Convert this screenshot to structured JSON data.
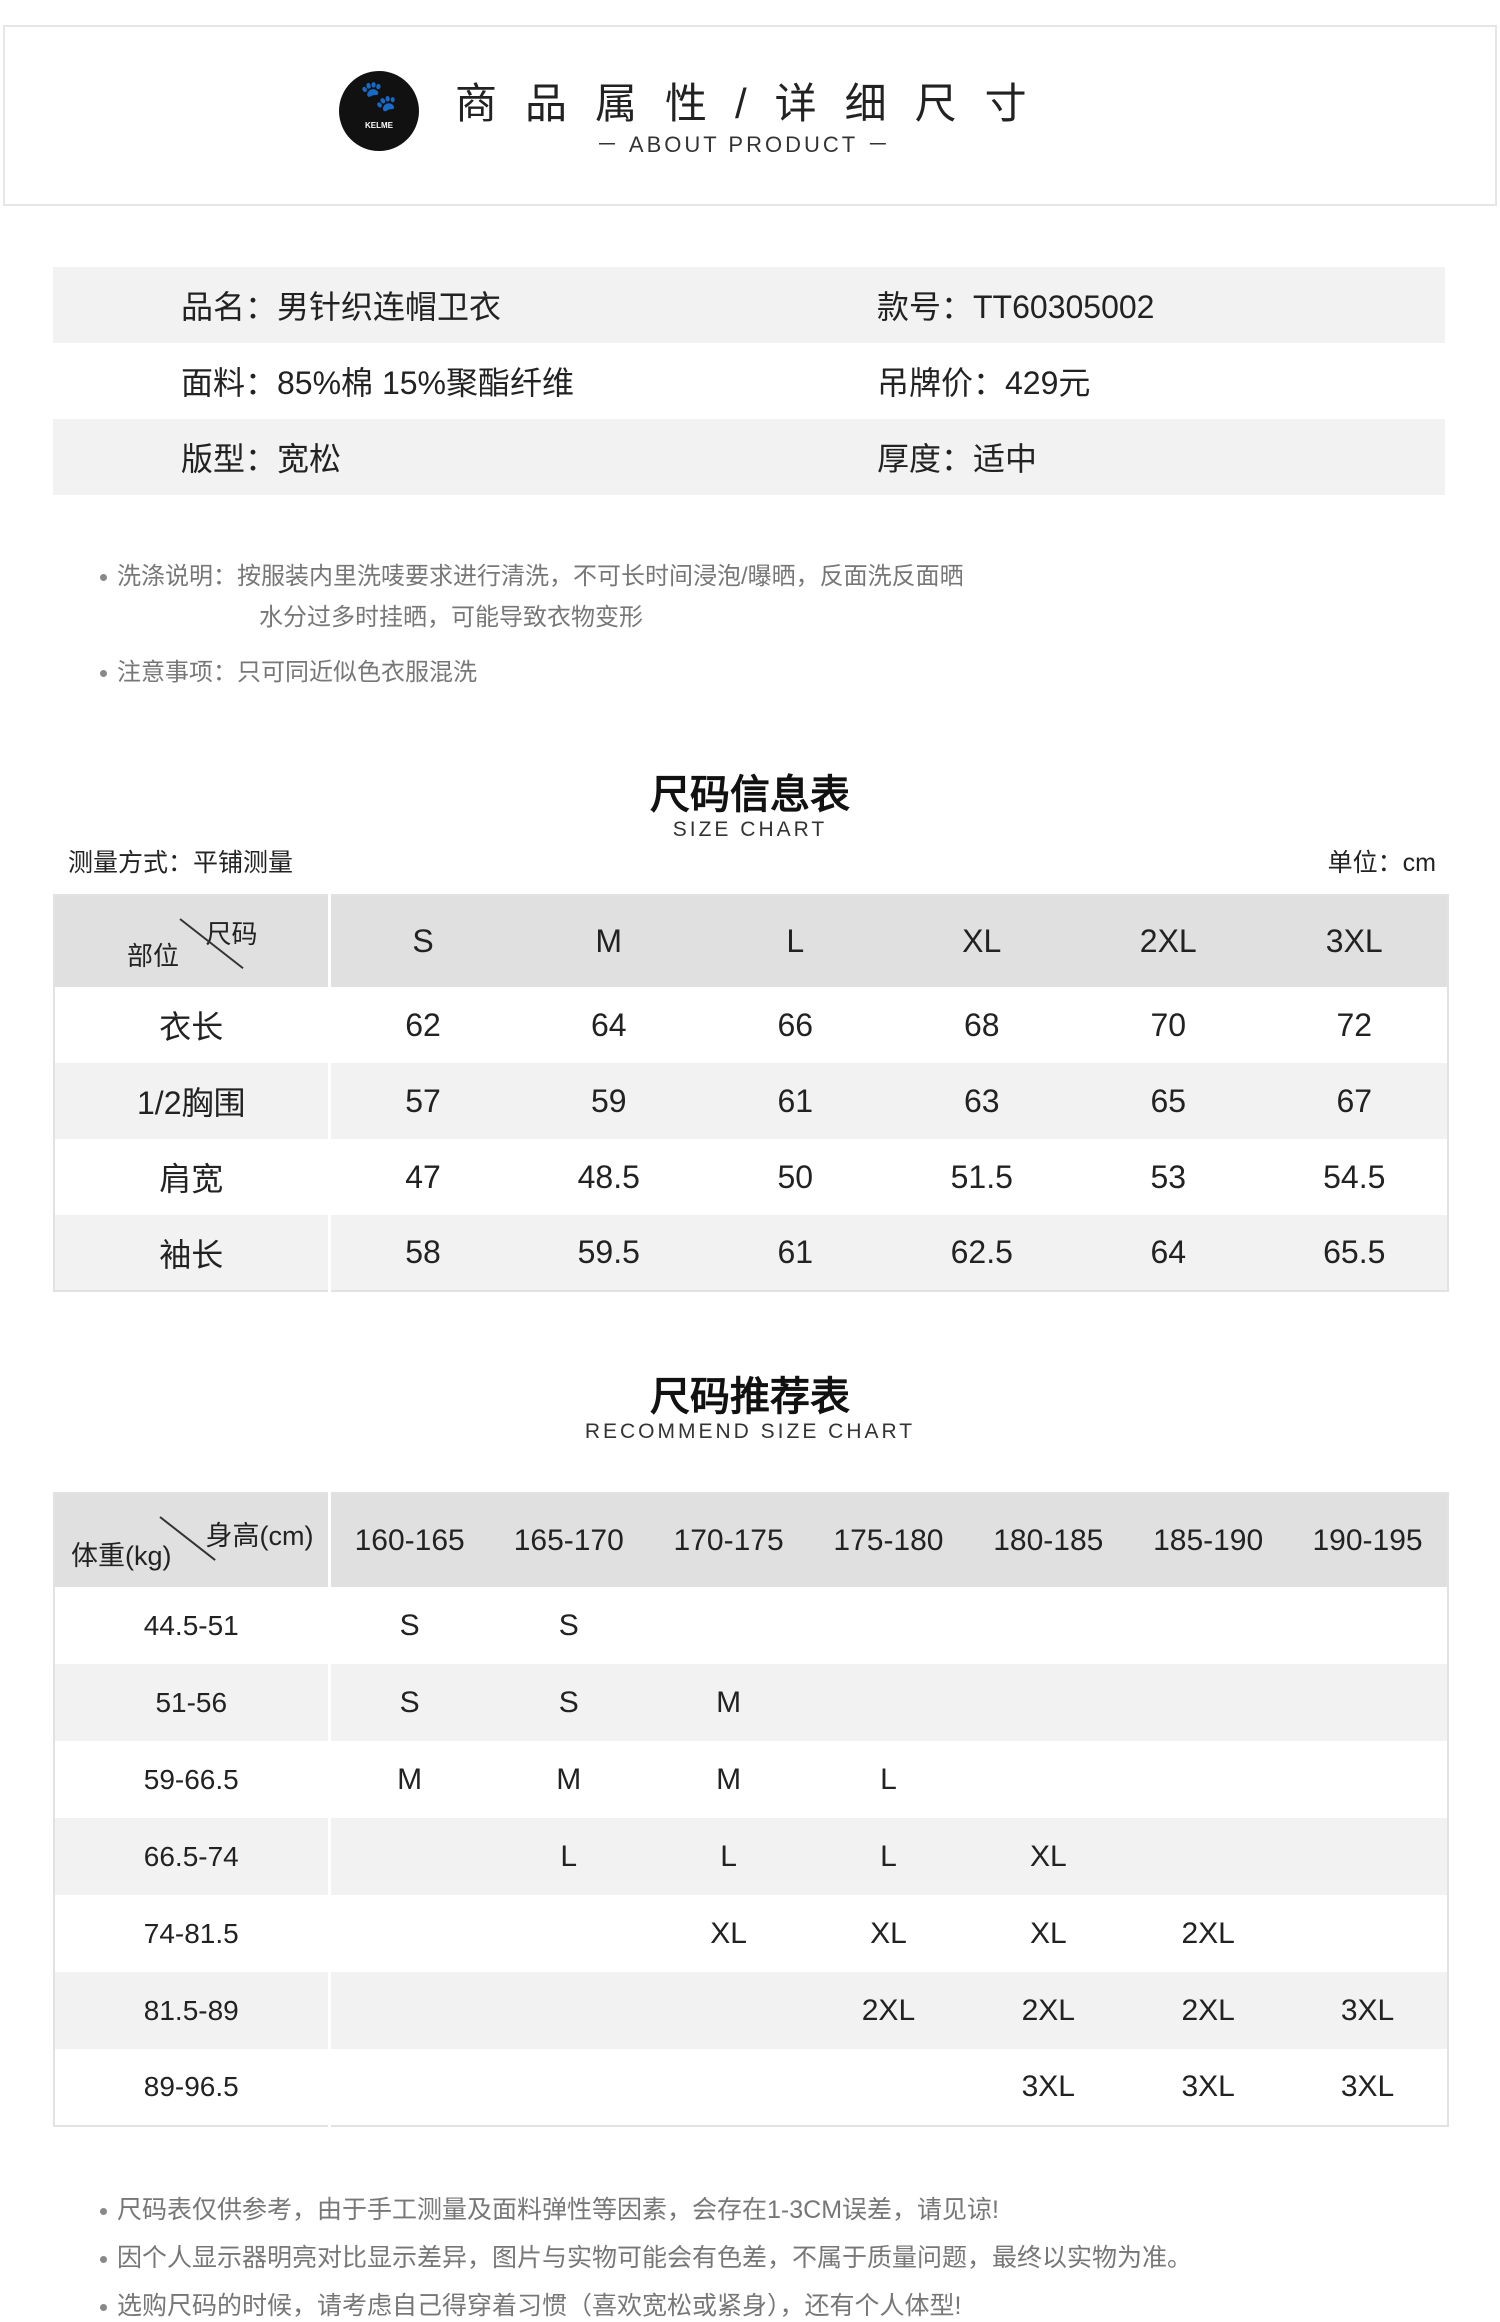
{
  "header": {
    "title": "商品属性/详细尺寸",
    "subtitle": "－ ABOUT PRODUCT －",
    "logo_text": "KELME",
    "logo_icon": "paw-icon"
  },
  "info": [
    {
      "left": "品名：男针织连帽卫衣",
      "right": "款号：TT60305002"
    },
    {
      "left": "面料：85%棉 15%聚酯纤维",
      "right": "吊牌价：429元"
    },
    {
      "left": "版型：宽松",
      "right": "厚度：适中"
    }
  ],
  "care_notes": {
    "wash_label": "洗涤说明：",
    "wash_line1": "按服装内里洗唛要求进行清洗，不可长时间浸泡/曝晒，反面洗反面晒",
    "wash_line2": "水分过多时挂晒，可能导致衣物变形",
    "caution_label": "注意事项：",
    "caution_text": "只可同近似色衣服混洗"
  },
  "size_chart": {
    "title": "尺码信息表",
    "subtitle": "SIZE CHART",
    "method": "测量方式：平铺测量",
    "unit": "单位：cm",
    "corner_top": "尺码",
    "corner_bottom": "部位",
    "columns": [
      "S",
      "M",
      "L",
      "XL",
      "2XL",
      "3XL"
    ],
    "rows": [
      {
        "label": "衣长",
        "values": [
          "62",
          "64",
          "66",
          "68",
          "70",
          "72"
        ]
      },
      {
        "label": "1/2胸围",
        "values": [
          "57",
          "59",
          "61",
          "63",
          "65",
          "67"
        ]
      },
      {
        "label": "肩宽",
        "values": [
          "47",
          "48.5",
          "50",
          "51.5",
          "53",
          "54.5"
        ]
      },
      {
        "label": "袖长",
        "values": [
          "58",
          "59.5",
          "61",
          "62.5",
          "64",
          "65.5"
        ]
      }
    ]
  },
  "recommend": {
    "title": "尺码推荐表",
    "subtitle": "RECOMMEND SIZE  CHART",
    "corner_top": "身高(cm)",
    "corner_bottom": "体重(kg)",
    "columns": [
      "160-165",
      "165-170",
      "170-175",
      "175-180",
      "180-185",
      "185-190",
      "190-195"
    ],
    "rows": [
      {
        "label": "44.5-51",
        "values": [
          "S",
          "S",
          "",
          "",
          "",
          "",
          ""
        ]
      },
      {
        "label": "51-56",
        "values": [
          "S",
          "S",
          "M",
          "",
          "",
          "",
          ""
        ]
      },
      {
        "label": "59-66.5",
        "values": [
          "M",
          "M",
          "M",
          "L",
          "",
          "",
          ""
        ]
      },
      {
        "label": "66.5-74",
        "values": [
          "",
          "L",
          "L",
          "L",
          "XL",
          "",
          ""
        ]
      },
      {
        "label": "74-81.5",
        "values": [
          "",
          "",
          "XL",
          "XL",
          "XL",
          "2XL",
          ""
        ]
      },
      {
        "label": "81.5-89",
        "values": [
          "",
          "",
          "",
          "2XL",
          "2XL",
          "2XL",
          "3XL"
        ]
      },
      {
        "label": "89-96.5",
        "values": [
          "",
          "",
          "",
          "",
          "3XL",
          "3XL",
          "3XL"
        ]
      }
    ]
  },
  "footer_notes": [
    "尺码表仅供参考，由于手工测量及面料弹性等因素，会存在1-3CM误差，请见谅!",
    "因个人显示器明亮对比显示差异，图片与实物可能会有色差，不属于质量问题，最终以实物为准。",
    "选购尺码的时候，请考虑自己得穿着习惯（喜欢宽松或紧身），还有个人体型!"
  ]
}
